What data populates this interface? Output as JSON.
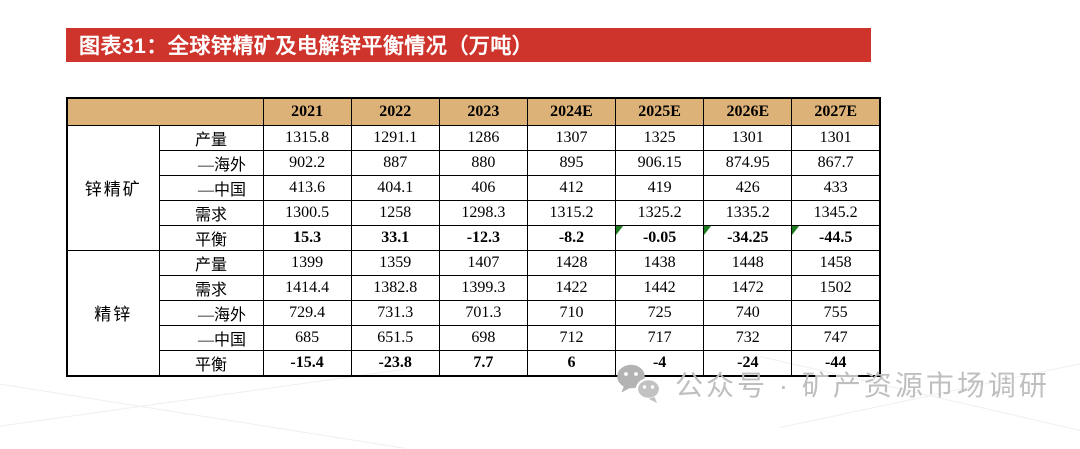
{
  "figure": {
    "title": "图表31：全球锌精矿及电解锌平衡情况（万吨）"
  },
  "colors": {
    "banner_bg": "#CE342C",
    "banner_text": "#FFFFFF",
    "header_bg": "#DDB279",
    "flag_green": "#1B7A1E",
    "watermark_gray": "#BFBFBF"
  },
  "chart_data": {
    "type": "table",
    "title": "图表31：全球锌精矿及电解锌平衡情况（万吨）",
    "unit": "万吨",
    "years": [
      "2021",
      "2022",
      "2023",
      "2024E",
      "2025E",
      "2026E",
      "2027E"
    ],
    "sections": [
      {
        "group": "锌精矿",
        "rows": [
          {
            "label": "产量",
            "indent": false,
            "bold": false,
            "values": [
              "1315.8",
              "1291.1",
              "1286",
              "1307",
              "1325",
              "1301",
              "1301"
            ]
          },
          {
            "label": "—海外",
            "indent": true,
            "bold": false,
            "values": [
              "902.2",
              "887",
              "880",
              "895",
              "906.15",
              "874.95",
              "867.7"
            ]
          },
          {
            "label": "—中国",
            "indent": true,
            "bold": false,
            "values": [
              "413.6",
              "404.1",
              "406",
              "412",
              "419",
              "426",
              "433"
            ]
          },
          {
            "label": "需求",
            "indent": false,
            "bold": false,
            "values": [
              "1300.5",
              "1258",
              "1298.3",
              "1315.2",
              "1325.2",
              "1335.2",
              "1345.2"
            ]
          },
          {
            "label": "平衡",
            "indent": false,
            "bold": true,
            "flagged": [
              4,
              5,
              6
            ],
            "values": [
              "15.3",
              "33.1",
              "-12.3",
              "-8.2",
              "-0.05",
              "-34.25",
              "-44.5"
            ]
          }
        ]
      },
      {
        "group": "精锌",
        "rows": [
          {
            "label": "产量",
            "indent": false,
            "bold": false,
            "values": [
              "1399",
              "1359",
              "1407",
              "1428",
              "1438",
              "1448",
              "1458"
            ]
          },
          {
            "label": "需求",
            "indent": false,
            "bold": false,
            "values": [
              "1414.4",
              "1382.8",
              "1399.3",
              "1422",
              "1442",
              "1472",
              "1502"
            ]
          },
          {
            "label": "—海外",
            "indent": true,
            "bold": false,
            "values": [
              "729.4",
              "731.3",
              "701.3",
              "710",
              "725",
              "740",
              "755"
            ]
          },
          {
            "label": "—中国",
            "indent": true,
            "bold": false,
            "values": [
              "685",
              "651.5",
              "698",
              "712",
              "717",
              "732",
              "747"
            ]
          },
          {
            "label": "平衡",
            "indent": false,
            "bold": true,
            "values": [
              "-15.4",
              "-23.8",
              "7.7",
              "6",
              "-4",
              "-24",
              "-44"
            ]
          }
        ]
      }
    ]
  },
  "watermark": {
    "icon": "wechat-public-account-icon",
    "text": "公众号 · 矿产资源市场调研"
  }
}
